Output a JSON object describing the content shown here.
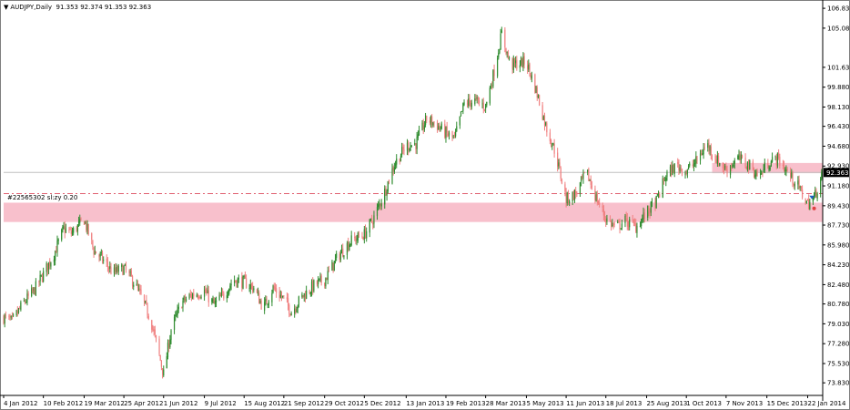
{
  "chart_data": {
    "type": "candlestick",
    "title": "AUDJPY,Daily",
    "ohlc_readout": "91.353 92.374 91.353 92.363",
    "current_price": "92.363",
    "object_label": "#22565302 sl:zy 0.20",
    "colors": {
      "up": "#2e8b2e",
      "down": "#f08080",
      "zone_fill": "#f8c0cc",
      "zone_line_dash": "#e06070",
      "price_line": "#c0c0c0",
      "price_tag_bg": "#000000",
      "price_tag_text": "#ffffff",
      "marker": "#1f5fbf"
    },
    "y_axis": {
      "ylim": [
        72.8,
        107.4
      ],
      "ticks": [
        "106.830",
        "105.080",
        "101.630",
        "99.880",
        "98.130",
        "96.430",
        "94.680",
        "92.930",
        "91.180",
        "89.430",
        "87.730",
        "85.980",
        "84.230",
        "82.480",
        "80.780",
        "79.030",
        "77.280",
        "75.530",
        "73.830"
      ]
    },
    "x_axis": {
      "start": "2012-01-04",
      "end": "2014-02-05",
      "ticks": [
        {
          "date": "2012-01-04",
          "label": "4 Jan 2012"
        },
        {
          "date": "2012-02-10",
          "label": "10 Feb 2012"
        },
        {
          "date": "2012-03-19",
          "label": "19 Mar 2012"
        },
        {
          "date": "2012-04-25",
          "label": "25 Apr 2012"
        },
        {
          "date": "2012-06-01",
          "label": "1 Jun 2012"
        },
        {
          "date": "2012-07-09",
          "label": "9 Jul 2012"
        },
        {
          "date": "2012-08-15",
          "label": "15 Aug 2012"
        },
        {
          "date": "2012-09-21",
          "label": "21 Sep 2012"
        },
        {
          "date": "2012-10-29",
          "label": "29 Oct 2012"
        },
        {
          "date": "2012-12-05",
          "label": "5 Dec 2012"
        },
        {
          "date": "2013-01-13",
          "label": "13 Jan 2013"
        },
        {
          "date": "2013-02-19",
          "label": "19 Feb 2013"
        },
        {
          "date": "2013-03-28",
          "label": "28 Mar 2013"
        },
        {
          "date": "2013-05-05",
          "label": "5 May 2013"
        },
        {
          "date": "2013-06-11",
          "label": "11 Jun 2013"
        },
        {
          "date": "2013-07-18",
          "label": "18 Jul 2013"
        },
        {
          "date": "2013-08-25",
          "label": "25 Aug 2013"
        },
        {
          "date": "2013-10-01",
          "label": "1 Oct 2013"
        },
        {
          "date": "2013-11-07",
          "label": "7 Nov 2013"
        },
        {
          "date": "2013-12-15",
          "label": "15 Dec 2013"
        },
        {
          "date": "2014-01-22",
          "label": "22 Jan 2014"
        }
      ]
    },
    "price_path": [
      [
        "2012-01-04",
        79.6
      ],
      [
        "2012-01-12",
        79.2
      ],
      [
        "2012-01-22",
        80.8
      ],
      [
        "2012-02-01",
        81.9
      ],
      [
        "2012-02-10",
        83.4
      ],
      [
        "2012-02-20",
        85.2
      ],
      [
        "2012-02-29",
        87.4
      ],
      [
        "2012-03-07",
        87.0
      ],
      [
        "2012-03-19",
        88.2
      ],
      [
        "2012-03-28",
        85.5
      ],
      [
        "2012-04-06",
        84.6
      ],
      [
        "2012-04-15",
        83.5
      ],
      [
        "2012-04-25",
        83.9
      ],
      [
        "2012-05-05",
        82.6
      ],
      [
        "2012-05-13",
        81.0
      ],
      [
        "2012-05-20",
        79.4
      ],
      [
        "2012-05-27",
        76.6
      ],
      [
        "2012-06-01",
        74.6
      ],
      [
        "2012-06-08",
        78.5
      ],
      [
        "2012-06-18",
        80.9
      ],
      [
        "2012-06-28",
        81.6
      ],
      [
        "2012-07-09",
        81.9
      ],
      [
        "2012-07-18",
        80.7
      ],
      [
        "2012-07-27",
        81.6
      ],
      [
        "2012-08-05",
        82.9
      ],
      [
        "2012-08-15",
        82.7
      ],
      [
        "2012-08-24",
        82.2
      ],
      [
        "2012-09-02",
        80.4
      ],
      [
        "2012-09-11",
        82.2
      ],
      [
        "2012-09-21",
        81.2
      ],
      [
        "2012-09-28",
        80.1
      ],
      [
        "2012-10-08",
        81.4
      ],
      [
        "2012-10-19",
        82.4
      ],
      [
        "2012-10-29",
        82.9
      ],
      [
        "2012-11-10",
        84.9
      ],
      [
        "2012-11-22",
        86.3
      ],
      [
        "2012-12-05",
        86.9
      ],
      [
        "2012-12-14",
        88.4
      ],
      [
        "2012-12-23",
        90.4
      ],
      [
        "2013-01-02",
        93.1
      ],
      [
        "2013-01-13",
        94.7
      ],
      [
        "2013-01-22",
        94.9
      ],
      [
        "2013-02-01",
        97.1
      ],
      [
        "2013-02-10",
        96.6
      ],
      [
        "2013-02-19",
        95.8
      ],
      [
        "2013-02-27",
        95.3
      ],
      [
        "2013-03-08",
        98.4
      ],
      [
        "2013-03-17",
        98.7
      ],
      [
        "2013-03-28",
        98.2
      ],
      [
        "2013-04-04",
        100.9
      ],
      [
        "2013-04-12",
        104.6
      ],
      [
        "2013-04-20",
        101.8
      ],
      [
        "2013-04-28",
        102.0
      ],
      [
        "2013-05-05",
        102.1
      ],
      [
        "2013-05-14",
        99.6
      ],
      [
        "2013-05-23",
        96.5
      ],
      [
        "2013-06-01",
        94.1
      ],
      [
        "2013-06-11",
        90.0
      ],
      [
        "2013-06-20",
        90.5
      ],
      [
        "2013-06-30",
        92.4
      ],
      [
        "2013-07-09",
        90.1
      ],
      [
        "2013-07-18",
        88.3
      ],
      [
        "2013-07-27",
        87.5
      ],
      [
        "2013-08-05",
        88.1
      ],
      [
        "2013-08-15",
        87.6
      ],
      [
        "2013-08-25",
        88.8
      ],
      [
        "2013-09-03",
        89.8
      ],
      [
        "2013-09-12",
        92.1
      ],
      [
        "2013-09-22",
        93.0
      ],
      [
        "2013-10-01",
        92.5
      ],
      [
        "2013-10-10",
        93.3
      ],
      [
        "2013-10-20",
        94.9
      ],
      [
        "2013-10-30",
        93.4
      ],
      [
        "2013-11-07",
        92.6
      ],
      [
        "2013-11-18",
        93.6
      ],
      [
        "2013-11-28",
        93.0
      ],
      [
        "2013-12-08",
        92.0
      ],
      [
        "2013-12-15",
        93.1
      ],
      [
        "2013-12-25",
        93.6
      ],
      [
        "2014-01-03",
        92.4
      ],
      [
        "2014-01-12",
        91.3
      ],
      [
        "2014-01-22",
        89.6
      ],
      [
        "2014-01-28",
        90.1
      ],
      [
        "2014-02-05",
        92.4
      ]
    ],
    "zones": [
      {
        "from_date": "2012-01-04",
        "to_date": "2014-02-05",
        "top": 89.7,
        "bottom": 88.0
      },
      {
        "from_date": "2013-10-25",
        "to_date": "2014-02-05",
        "top": 93.2,
        "bottom": 92.3
      }
    ],
    "dash_line_price": 90.5,
    "price_line_value": 92.363,
    "markers": [
      {
        "date": "2014-01-26",
        "price": 90.0,
        "shape": "arrow-down"
      },
      {
        "date": "2014-01-28",
        "price": 89.2,
        "shape": "dot"
      }
    ]
  }
}
